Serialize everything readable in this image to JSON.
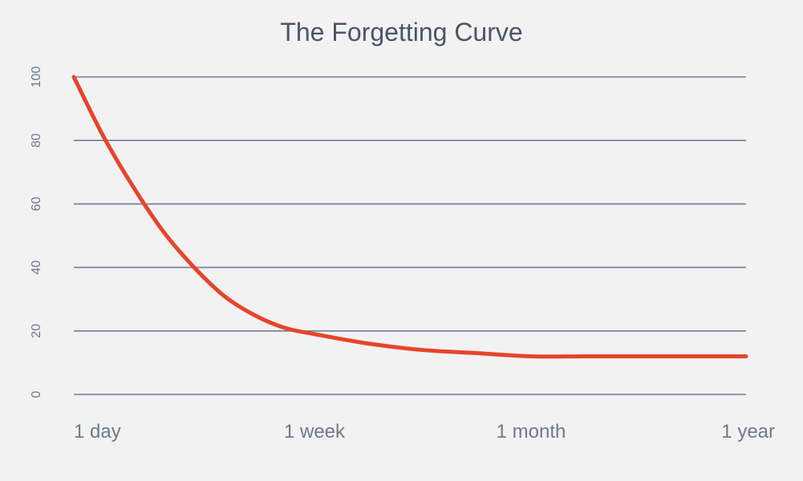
{
  "chart_data": {
    "type": "line",
    "title": "The Forgetting Curve",
    "xlabel": "",
    "ylabel": "",
    "categories": [
      "1 day",
      "1 week",
      "1 month",
      "1 year"
    ],
    "ylim": [
      0,
      100
    ],
    "yticks": [
      0,
      20,
      40,
      60,
      80,
      100
    ],
    "grid": true,
    "series": [
      {
        "color": "#e5452b",
        "x": [
          0,
          0.125,
          0.25,
          0.375,
          0.5,
          0.625,
          0.75,
          0.875,
          1,
          1.25,
          1.5,
          1.75,
          2,
          2.25,
          2.5,
          2.75,
          3
        ],
        "values": [
          100,
          81,
          65,
          51,
          40,
          31,
          25,
          21,
          19,
          16,
          14,
          13,
          12,
          12,
          12,
          12,
          12
        ]
      }
    ]
  }
}
